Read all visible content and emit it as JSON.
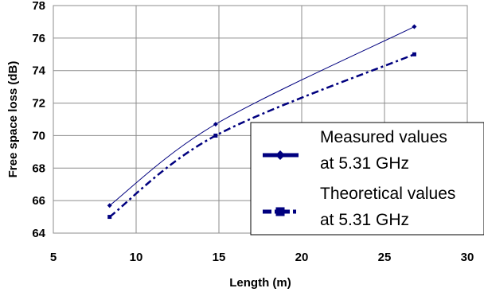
{
  "chart_data": {
    "type": "line",
    "title": "",
    "xlabel": "Length (m)",
    "ylabel": "Free space loss (dB)",
    "xlim": [
      5,
      30
    ],
    "ylim": [
      64,
      78
    ],
    "x_ticks": [
      "5",
      "10",
      "15",
      "20",
      "25",
      "30"
    ],
    "y_ticks": [
      "64",
      "66",
      "68",
      "70",
      "72",
      "74",
      "76",
      "78"
    ],
    "grid": true,
    "legend_position": "lower-right",
    "series": [
      {
        "name_lines": [
          "Measured values",
          "at 5.31 GHz"
        ],
        "color": "#00007f",
        "marker": "diamond",
        "line_style": "solid",
        "x": [
          8.4,
          14.8,
          26.8
        ],
        "y": [
          65.7,
          70.7,
          76.7
        ]
      },
      {
        "name_lines": [
          "Theoretical values",
          "at 5.31 GHz"
        ],
        "color": "#00007f",
        "marker": "square",
        "line_style": "dash-dot",
        "x": [
          8.4,
          14.8,
          26.8
        ],
        "y": [
          65.0,
          70.0,
          75.0
        ]
      }
    ]
  }
}
